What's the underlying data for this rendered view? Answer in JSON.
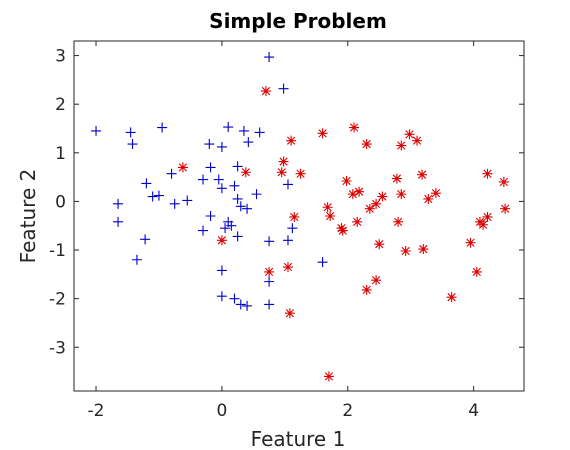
{
  "chart_data": {
    "type": "scatter",
    "title": "Simple Problem",
    "xlabel": "Feature 1",
    "ylabel": "Feature 2",
    "xlim": [
      -2.35,
      4.8
    ],
    "ylim": [
      -3.9,
      3.3
    ],
    "xticks": [
      -2,
      0,
      2,
      4
    ],
    "yticks": [
      3,
      2,
      1,
      0,
      -1,
      -2,
      -3
    ],
    "xtick_labels": [
      "-2",
      "0",
      "2",
      "4"
    ],
    "ytick_labels": [
      "3",
      "2",
      "1",
      "0",
      "-1",
      "-2",
      "-3"
    ],
    "grid": false,
    "legend": null,
    "series": [
      {
        "marker": "+",
        "color": "#0000cc",
        "points": [
          [
            -2.0,
            1.45
          ],
          [
            -1.45,
            1.42
          ],
          [
            -1.42,
            1.18
          ],
          [
            -0.95,
            1.52
          ],
          [
            -0.2,
            1.18
          ],
          [
            0.1,
            1.53
          ],
          [
            0.35,
            1.45
          ],
          [
            0.42,
            1.22
          ],
          [
            0.6,
            1.42
          ],
          [
            0.75,
            2.97
          ],
          [
            0.98,
            2.32
          ],
          [
            0.0,
            1.12
          ],
          [
            -0.8,
            0.57
          ],
          [
            -1.2,
            0.37
          ],
          [
            -0.3,
            0.45
          ],
          [
            -0.18,
            0.7
          ],
          [
            0.25,
            0.72
          ],
          [
            0.2,
            0.32
          ],
          [
            -0.05,
            0.45
          ],
          [
            -1.1,
            0.1
          ],
          [
            -1.0,
            0.12
          ],
          [
            -0.75,
            -0.05
          ],
          [
            -0.55,
            0.02
          ],
          [
            -1.65,
            -0.05
          ],
          [
            -1.65,
            -0.42
          ],
          [
            0.0,
            0.27
          ],
          [
            0.25,
            0.05
          ],
          [
            0.3,
            -0.1
          ],
          [
            0.4,
            -0.15
          ],
          [
            0.55,
            0.15
          ],
          [
            -0.18,
            -0.3
          ],
          [
            0.1,
            -0.42
          ],
          [
            0.15,
            -0.5
          ],
          [
            0.05,
            -0.55
          ],
          [
            -0.3,
            -0.6
          ],
          [
            -1.22,
            -0.78
          ],
          [
            -1.35,
            -1.2
          ],
          [
            0.25,
            -0.72
          ],
          [
            0.75,
            -0.82
          ],
          [
            1.05,
            -0.8
          ],
          [
            1.12,
            -0.55
          ],
          [
            1.6,
            -1.25
          ],
          [
            0.75,
            -1.65
          ],
          [
            0.0,
            -1.42
          ],
          [
            0.0,
            -1.95
          ],
          [
            0.2,
            -2.0
          ],
          [
            0.3,
            -2.12
          ],
          [
            0.4,
            -2.15
          ],
          [
            0.75,
            -2.12
          ],
          [
            1.05,
            0.35
          ]
        ]
      },
      {
        "marker": "*",
        "color": "#dd0000",
        "points": [
          [
            0.7,
            2.27
          ],
          [
            1.1,
            1.25
          ],
          [
            1.6,
            1.4
          ],
          [
            2.1,
            1.52
          ],
          [
            2.3,
            1.18
          ],
          [
            2.85,
            1.15
          ],
          [
            2.98,
            1.38
          ],
          [
            3.1,
            1.25
          ],
          [
            0.98,
            0.82
          ],
          [
            0.95,
            0.6
          ],
          [
            1.25,
            0.57
          ],
          [
            -0.62,
            0.7
          ],
          [
            0.38,
            0.6
          ],
          [
            1.98,
            0.42
          ],
          [
            2.18,
            0.2
          ],
          [
            2.08,
            0.15
          ],
          [
            2.78,
            0.47
          ],
          [
            3.18,
            0.55
          ],
          [
            3.4,
            0.17
          ],
          [
            3.28,
            0.05
          ],
          [
            2.85,
            0.15
          ],
          [
            2.55,
            0.1
          ],
          [
            2.45,
            -0.05
          ],
          [
            2.35,
            -0.15
          ],
          [
            1.68,
            -0.12
          ],
          [
            1.72,
            -0.3
          ],
          [
            1.15,
            -0.32
          ],
          [
            1.9,
            -0.55
          ],
          [
            1.92,
            -0.6
          ],
          [
            2.15,
            -0.42
          ],
          [
            2.8,
            -0.42
          ],
          [
            4.22,
            0.57
          ],
          [
            4.48,
            0.4
          ],
          [
            4.5,
            -0.15
          ],
          [
            4.22,
            -0.32
          ],
          [
            4.1,
            -0.42
          ],
          [
            4.15,
            -0.48
          ],
          [
            3.95,
            -0.85
          ],
          [
            3.2,
            -0.98
          ],
          [
            2.92,
            -1.02
          ],
          [
            2.5,
            -0.88
          ],
          [
            0.0,
            -0.8
          ],
          [
            1.05,
            -1.35
          ],
          [
            0.75,
            -1.45
          ],
          [
            4.05,
            -1.45
          ],
          [
            2.45,
            -1.62
          ],
          [
            2.3,
            -1.82
          ],
          [
            3.65,
            -1.97
          ],
          [
            1.08,
            -2.3
          ],
          [
            1.7,
            -3.6
          ]
        ]
      }
    ]
  }
}
